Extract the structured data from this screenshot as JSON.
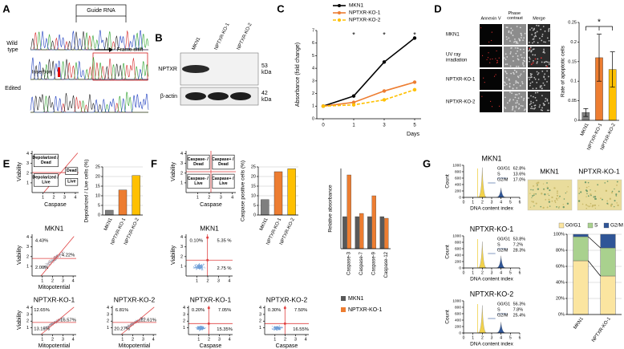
{
  "panel_labels": [
    "A",
    "B",
    "C",
    "D",
    "E",
    "F",
    "G"
  ],
  "panel_a": {
    "guide_rna": "Guide RNA",
    "wild_type": "Wild type",
    "frame_shift": "Frame shift",
    "insertion": "Insertion",
    "edited": "Edited"
  },
  "panel_b": {
    "lanes": [
      "MKN1",
      "NPTXR-KO-1",
      "NPTXR-KO-2"
    ],
    "rows": [
      "NPTXR",
      "β-actin"
    ],
    "sizes": [
      "53 kDa",
      "42 kDa"
    ]
  },
  "panel_d_images": {
    "columns": [
      "Annexin V",
      "Phase contrast",
      "Merge"
    ],
    "rows": [
      "MKN1",
      "UV ray irradiation",
      "NPTXR-KO-1",
      "NPTXR-KO-2"
    ]
  },
  "panel_e_flow": {
    "ticks": [
      1,
      2,
      3,
      4
    ],
    "schematic": {
      "ylabel": "Viability",
      "xlabel": "Caspase",
      "quadrants": [
        "Depolarized / Dead",
        "Dead",
        "Depolarized / Live",
        "Live"
      ]
    },
    "plots": [
      {
        "title": "MKN1",
        "ylabel": "Viability",
        "xlabel": "Mitopotential",
        "percents": [
          "4.43%",
          "4.22%",
          "2.00%"
        ]
      },
      {
        "title": "NPTXR-KO-1",
        "ylabel": "Viability",
        "xlabel": "Mitopotential",
        "percents": [
          "12.65%",
          "16.57%",
          "13.15%"
        ]
      },
      {
        "title": "NPTXR-KO-2",
        "xlabel": "Mitopotential",
        "percents": [
          "6.81%",
          "12.61%",
          "20.27%"
        ]
      }
    ]
  },
  "panel_f_flow": {
    "ticks": [
      1,
      2,
      3,
      4
    ],
    "schematic": {
      "ylabel": "Viability",
      "xlabel": "Caspase",
      "quadrants": [
        "Caspase- / Dead",
        "Caspase+ / Dead",
        "Caspase- / Live",
        "Caspase+ / Live"
      ]
    },
    "plots": [
      {
        "title": "MKN1",
        "ylabel": "Viability",
        "percents": [
          "0.10%",
          "5.35 %",
          "2.75 %"
        ]
      },
      {
        "title": "NPTXR-KO-1",
        "xlabel": "Caspase",
        "percents": [
          "0.20%",
          "7.05%",
          "15.35%"
        ]
      },
      {
        "title": "NPTXR-KO-2",
        "xlabel": "Caspase",
        "percents": [
          "0.30%",
          "7.50%",
          "16.55%"
        ]
      }
    ]
  },
  "panel_g_cycle": {
    "ylabel": "Count",
    "xlabel": "DNA content index",
    "yticks": [
      0,
      200,
      400,
      600,
      800,
      1000
    ],
    "xticks": [
      0,
      1,
      2,
      3,
      4,
      5,
      6
    ],
    "phases": [
      "G0/G1",
      "S",
      "G2/M"
    ],
    "plots": [
      {
        "title": "MKN1",
        "percents": [
          "62.8%",
          "13.6%",
          "17.0%"
        ]
      },
      {
        "title": "NPTXR-KO-1",
        "percents": [
          "53.8%",
          "7.2%",
          "28.3%"
        ]
      },
      {
        "title": "NPTXR-KO-2",
        "percents": [
          "56.3%",
          "7.8%",
          "25.4%"
        ]
      }
    ]
  },
  "panel_g_images": {
    "labels": [
      "MKN1",
      "NPTXR-KO-1"
    ]
  },
  "chart_data": [
    {
      "type": "line",
      "categories": [
        "0",
        "1",
        "3",
        "5"
      ],
      "xlabel": "Days",
      "ylabel": "Absorbance (fold change)",
      "ylim": [
        0,
        7
      ],
      "yticks": [
        0,
        1,
        2,
        3,
        4,
        5,
        6,
        7
      ],
      "legend": "top",
      "series": [
        {
          "name": "MKN1",
          "color": "#000000",
          "values": [
            1,
            1.8,
            4.5,
            6.4
          ]
        },
        {
          "name": "NPTXR-KO-1",
          "color": "#ed7d31",
          "values": [
            1,
            1.3,
            2.2,
            2.9
          ]
        },
        {
          "name": "NPTXR-KO-2",
          "color": "#ffc000",
          "values": [
            1,
            1.1,
            1.5,
            2.3
          ],
          "style": "dashed"
        }
      ],
      "annotations": [
        {
          "text": "*",
          "x": "1"
        },
        {
          "text": "*",
          "x": "3"
        },
        {
          "text": "*",
          "x": "5"
        }
      ]
    },
    {
      "type": "bar",
      "categories": [
        "MKN1",
        "NPTXR-KO-1",
        "NPTXR-KO-2"
      ],
      "values": [
        0.02,
        0.16,
        0.13
      ],
      "errors": [
        0.01,
        0.06,
        0.045
      ],
      "colors": [
        "#7f7f7f",
        "#ed7d31",
        "#ffc000"
      ],
      "ylabel": "Rate of apoptotic cells",
      "ylim": [
        0,
        0.25
      ],
      "yticks": [
        0,
        0.05,
        0.1,
        0.15,
        0.2,
        0.25
      ],
      "annotations": [
        {
          "text": "*"
        }
      ]
    },
    {
      "type": "bar",
      "categories": [
        "MKN1",
        "NPTXR-KO-1",
        "NPTXR-KO-2"
      ],
      "values": [
        2.5,
        13,
        20.5
      ],
      "colors": [
        "#7f7f7f",
        "#ed7d31",
        "#ffc000"
      ],
      "ylabel": "Depolarized / Live cells (%)",
      "ylim": [
        0,
        25
      ],
      "yticks": [
        0,
        5,
        10,
        15,
        20,
        25
      ],
      "grid": true
    },
    {
      "type": "bar",
      "categories": [
        "MKN1",
        "NPTXR-KO-1",
        "NPTXR-KO-2"
      ],
      "values": [
        8,
        22.5,
        24
      ],
      "colors": [
        "#7f7f7f",
        "#ed7d31",
        "#ffc000"
      ],
      "ylabel": "Caspase positive cells (%)",
      "ylim": [
        0,
        25
      ],
      "yticks": [
        0,
        5,
        10,
        15,
        20,
        25
      ],
      "grid": true
    },
    {
      "type": "bar",
      "categories": [
        "Caspase-3",
        "Caspase-7",
        "Caspase-9",
        "Caspase-12"
      ],
      "ylabel": "Relative absorbance",
      "ylim": [
        0,
        2.5
      ],
      "legend": "bottom",
      "series": [
        {
          "name": "MKN1",
          "color": "#595959",
          "values": [
            1,
            1,
            1,
            1
          ]
        },
        {
          "name": "NPTXR-KO-1",
          "color": "#ed7d31",
          "values": [
            2.3,
            1.1,
            1.65,
            0.95
          ]
        }
      ]
    },
    {
      "type": "bar",
      "stacked": true,
      "categories": [
        "MKN1",
        "NPTXR-KO-1"
      ],
      "ylim": [
        0,
        100
      ],
      "legend": "top",
      "grid": true,
      "yticks": [
        {
          "value": 0,
          "label": "0%"
        },
        {
          "value": 20,
          "label": "20%"
        },
        {
          "value": 40,
          "label": "40%"
        },
        {
          "value": 60,
          "label": "60%"
        },
        {
          "value": 80,
          "label": "80%"
        },
        {
          "value": 100,
          "label": "100%"
        }
      ],
      "series": [
        {
          "name": "G0/G1",
          "color": "#fbe5a0",
          "values": [
            67,
            48
          ]
        },
        {
          "name": "S",
          "color": "#a9d18e",
          "values": [
            30,
            35
          ]
        },
        {
          "name": "G2/M",
          "color": "#2f5597",
          "values": [
            3,
            17
          ]
        }
      ]
    }
  ]
}
